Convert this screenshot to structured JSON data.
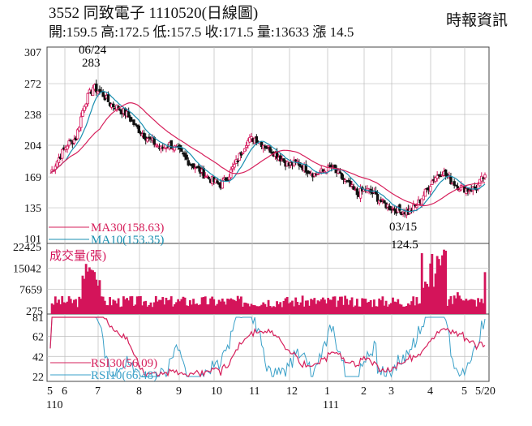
{
  "header": {
    "title": "3552  同致電子 1110520(日線圖)",
    "quote": "開:159.5 高:172.5 低:157.5 收:171.5 量:13633 漲 14.5",
    "source": "時報資訊"
  },
  "colors": {
    "ma30": "#d61f5b",
    "ma10": "#1a8fb0",
    "volume": "#d4145a",
    "rsi30": "#d61f5b",
    "rsi10": "#3aa0c8",
    "candle_up": "#d4145a",
    "candle_down": "#111111"
  },
  "chart_data": [
    {
      "type": "candlestick",
      "panel": "price",
      "yticks": [
        307,
        272,
        238,
        204,
        169,
        135,
        101
      ],
      "ylim": [
        101,
        307
      ],
      "annotations": [
        {
          "text_date": "06/24",
          "text_value": "283"
        },
        {
          "text_date": "03/15",
          "text_value": "124.5"
        }
      ],
      "legend": [
        {
          "key": "ma30",
          "label": "MA30(158.63)"
        },
        {
          "key": "ma10",
          "label": "MA10(153.35)"
        }
      ],
      "series_close": [
        {
          "x": "05/20",
          "y": 173
        },
        {
          "x": "05/27",
          "y": 190
        },
        {
          "x": "06/03",
          "y": 205
        },
        {
          "x": "06/10",
          "y": 212
        },
        {
          "x": "06/17",
          "y": 250
        },
        {
          "x": "06/24",
          "y": 268
        },
        {
          "x": "07/01",
          "y": 262
        },
        {
          "x": "07/08",
          "y": 250
        },
        {
          "x": "07/15",
          "y": 245
        },
        {
          "x": "07/22",
          "y": 238
        },
        {
          "x": "07/29",
          "y": 225
        },
        {
          "x": "08/05",
          "y": 215
        },
        {
          "x": "08/12",
          "y": 208
        },
        {
          "x": "08/19",
          "y": 200
        },
        {
          "x": "08/26",
          "y": 205
        },
        {
          "x": "09/02",
          "y": 198
        },
        {
          "x": "09/09",
          "y": 188
        },
        {
          "x": "09/16",
          "y": 180
        },
        {
          "x": "09/23",
          "y": 172
        },
        {
          "x": "09/30",
          "y": 165
        },
        {
          "x": "10/07",
          "y": 160
        },
        {
          "x": "10/14",
          "y": 172
        },
        {
          "x": "10/21",
          "y": 188
        },
        {
          "x": "10/28",
          "y": 208
        },
        {
          "x": "11/04",
          "y": 212
        },
        {
          "x": "11/11",
          "y": 205
        },
        {
          "x": "11/18",
          "y": 198
        },
        {
          "x": "11/25",
          "y": 190
        },
        {
          "x": "12/02",
          "y": 182
        },
        {
          "x": "12/09",
          "y": 185
        },
        {
          "x": "12/16",
          "y": 178
        },
        {
          "x": "12/23",
          "y": 172
        },
        {
          "x": "12/30",
          "y": 175
        },
        {
          "x": "01/06",
          "y": 180
        },
        {
          "x": "01/13",
          "y": 170
        },
        {
          "x": "01/20",
          "y": 160
        },
        {
          "x": "01/27",
          "y": 150
        },
        {
          "x": "02/10",
          "y": 155
        },
        {
          "x": "02/17",
          "y": 150
        },
        {
          "x": "02/24",
          "y": 140
        },
        {
          "x": "03/03",
          "y": 135
        },
        {
          "x": "03/10",
          "y": 132
        },
        {
          "x": "03/17",
          "y": 130
        },
        {
          "x": "03/24",
          "y": 138
        },
        {
          "x": "03/31",
          "y": 152
        },
        {
          "x": "04/07",
          "y": 168
        },
        {
          "x": "04/14",
          "y": 175
        },
        {
          "x": "04/21",
          "y": 165
        },
        {
          "x": "04/28",
          "y": 158
        },
        {
          "x": "05/05",
          "y": 155
        },
        {
          "x": "05/12",
          "y": 157
        },
        {
          "x": "05/20",
          "y": 171.5
        }
      ]
    },
    {
      "type": "bar",
      "panel": "volume",
      "title": "成交量(張)",
      "yticks": [
        22425,
        15042,
        7659,
        275
      ],
      "ylim": [
        275,
        22425
      ]
    },
    {
      "type": "line",
      "panel": "rsi",
      "yticks": [
        81,
        62,
        42,
        22
      ],
      "ylim": [
        22,
        81
      ],
      "legend": [
        {
          "key": "rsi30",
          "label": "RSI30(56.09)"
        },
        {
          "key": "rsi10",
          "label": "RSI10(66.48)"
        }
      ],
      "xticks": [
        "5",
        "6",
        "7",
        "8",
        "9",
        "10",
        "11",
        "12",
        "1",
        "2",
        "3",
        "4",
        "5",
        "5/20"
      ],
      "xyear": [
        "110",
        "111"
      ]
    }
  ]
}
